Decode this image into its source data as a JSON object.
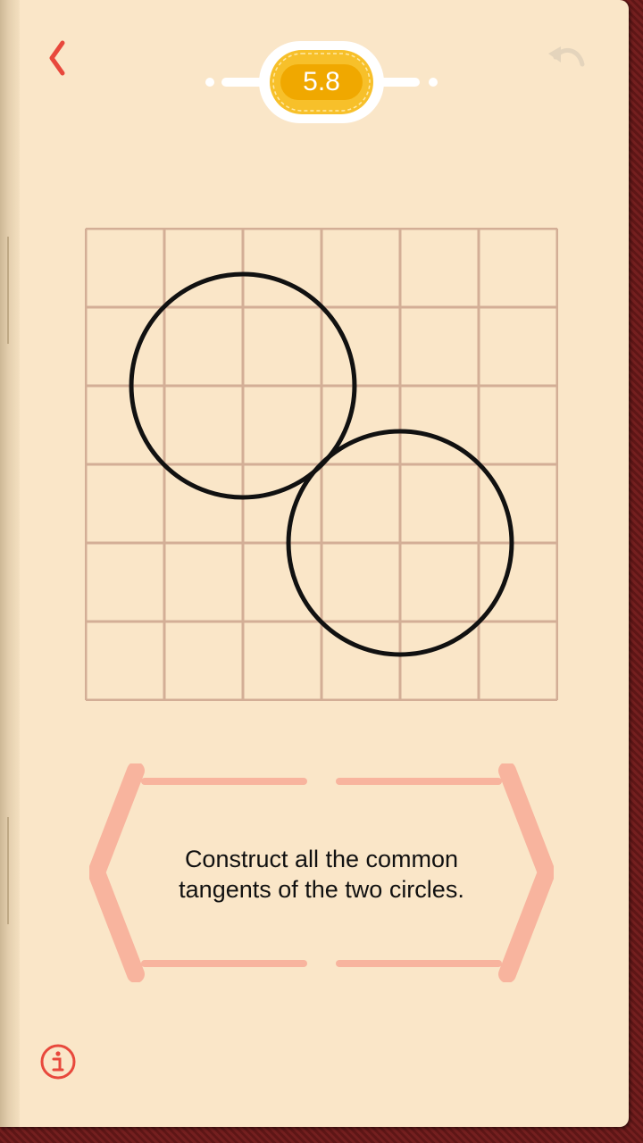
{
  "level": "5.8",
  "task": {
    "line1": "Construct all the common",
    "line2": "tangents of the two circles."
  },
  "icons": {
    "back": "chevron-left-icon",
    "undo": "undo-icon",
    "info": "info-icon"
  },
  "colors": {
    "page": "#fae6c8",
    "grid": "#d3ae96",
    "accent": "#e8483c",
    "badge": "#f7c02a",
    "frame": "#f8b49e",
    "circle_stroke": "#111111"
  },
  "grid": {
    "rows": 6,
    "cols": 6
  },
  "circles": [
    {
      "cx": 2,
      "cy": 2,
      "r": 1.42
    },
    {
      "cx": 4,
      "cy": 4,
      "r": 1.42
    }
  ]
}
